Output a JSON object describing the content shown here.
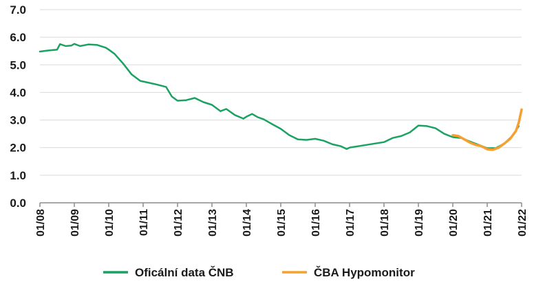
{
  "chart_data": {
    "type": "line",
    "title": "",
    "xlabel": "",
    "ylabel": "",
    "ylim": [
      0,
      7
    ],
    "yticks": [
      "0.0",
      "1.0",
      "2.0",
      "3.0",
      "4.0",
      "5.0",
      "6.0",
      "7.0"
    ],
    "xticks": [
      "01/08",
      "01/09",
      "01/10",
      "01/11",
      "01/12",
      "01/13",
      "01/14",
      "01/15",
      "01/16",
      "01/17",
      "01/18",
      "01/19",
      "01/20",
      "01/21",
      "01/22"
    ],
    "grid": "horizontal",
    "legend_position": "bottom",
    "series": [
      {
        "name": "Oficální data ČNB",
        "color": "#1aa260",
        "points": [
          [
            "2008-01",
            5.48
          ],
          [
            "2008-04",
            5.52
          ],
          [
            "2008-07",
            5.55
          ],
          [
            "2008-08",
            5.75
          ],
          [
            "2008-10",
            5.68
          ],
          [
            "2008-12",
            5.7
          ],
          [
            "2009-01",
            5.76
          ],
          [
            "2009-03",
            5.68
          ],
          [
            "2009-06",
            5.74
          ],
          [
            "2009-09",
            5.72
          ],
          [
            "2009-12",
            5.62
          ],
          [
            "2010-01",
            5.55
          ],
          [
            "2010-03",
            5.4
          ],
          [
            "2010-06",
            5.05
          ],
          [
            "2010-09",
            4.65
          ],
          [
            "2010-12",
            4.42
          ],
          [
            "2011-03",
            4.35
          ],
          [
            "2011-06",
            4.28
          ],
          [
            "2011-09",
            4.2
          ],
          [
            "2011-11",
            3.85
          ],
          [
            "2012-01",
            3.7
          ],
          [
            "2012-04",
            3.72
          ],
          [
            "2012-07",
            3.8
          ],
          [
            "2012-10",
            3.65
          ],
          [
            "2013-01",
            3.55
          ],
          [
            "2013-04",
            3.32
          ],
          [
            "2013-06",
            3.4
          ],
          [
            "2013-09",
            3.18
          ],
          [
            "2013-12",
            3.05
          ],
          [
            "2014-01",
            3.12
          ],
          [
            "2014-03",
            3.22
          ],
          [
            "2014-05",
            3.1
          ],
          [
            "2014-07",
            3.03
          ],
          [
            "2014-10",
            2.85
          ],
          [
            "2015-01",
            2.68
          ],
          [
            "2015-04",
            2.45
          ],
          [
            "2015-07",
            2.3
          ],
          [
            "2015-10",
            2.28
          ],
          [
            "2016-01",
            2.32
          ],
          [
            "2016-04",
            2.25
          ],
          [
            "2016-07",
            2.12
          ],
          [
            "2016-10",
            2.05
          ],
          [
            "2016-12",
            1.95
          ],
          [
            "2017-01",
            2.0
          ],
          [
            "2017-04",
            2.05
          ],
          [
            "2017-07",
            2.1
          ],
          [
            "2017-10",
            2.15
          ],
          [
            "2018-01",
            2.2
          ],
          [
            "2018-04",
            2.35
          ],
          [
            "2018-07",
            2.42
          ],
          [
            "2018-10",
            2.55
          ],
          [
            "2019-01",
            2.8
          ],
          [
            "2019-04",
            2.78
          ],
          [
            "2019-07",
            2.7
          ],
          [
            "2019-10",
            2.5
          ],
          [
            "2020-01",
            2.38
          ],
          [
            "2020-04",
            2.35
          ],
          [
            "2020-07",
            2.22
          ],
          [
            "2020-10",
            2.1
          ],
          [
            "2021-01",
            1.98
          ],
          [
            "2021-04",
            1.98
          ],
          [
            "2021-07",
            2.15
          ],
          [
            "2021-10",
            2.45
          ],
          [
            "2021-12",
            2.78
          ]
        ]
      },
      {
        "name": "ČBA Hypomonitor",
        "color": "#f5a030",
        "points": [
          [
            "2020-01",
            2.45
          ],
          [
            "2020-03",
            2.42
          ],
          [
            "2020-05",
            2.3
          ],
          [
            "2020-07",
            2.18
          ],
          [
            "2020-09",
            2.1
          ],
          [
            "2020-11",
            2.05
          ],
          [
            "2021-01",
            1.94
          ],
          [
            "2021-03",
            1.92
          ],
          [
            "2021-05",
            2.0
          ],
          [
            "2021-07",
            2.15
          ],
          [
            "2021-09",
            2.32
          ],
          [
            "2021-11",
            2.6
          ],
          [
            "2021-12",
            2.9
          ],
          [
            "2022-01",
            3.38
          ]
        ]
      }
    ]
  }
}
